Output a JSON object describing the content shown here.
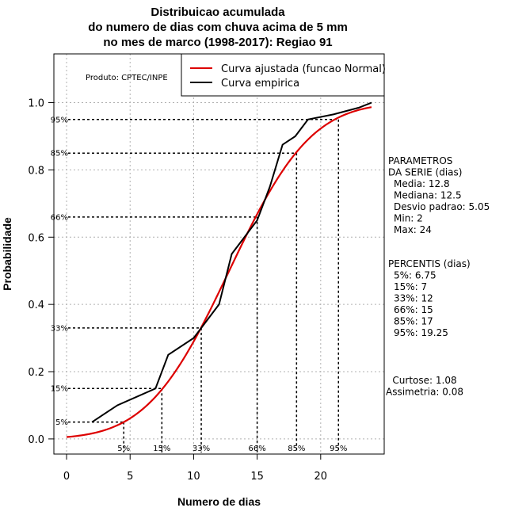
{
  "chart_data": {
    "type": "line",
    "title": [
      "Distribuicao acumulada",
      "do numero de dias com chuva acima de 5 mm",
      "no mes de marco (1998-2017): Regiao 91"
    ],
    "xlabel": "Numero de dias",
    "ylabel": "Probabilidade",
    "xlim": [
      -1,
      25
    ],
    "ylim": [
      -0.045,
      1.145
    ],
    "x_ticks": [
      0,
      5,
      10,
      15,
      20
    ],
    "y_ticks": [
      0.0,
      0.2,
      0.4,
      0.6,
      0.8,
      1.0
    ],
    "x_tick_labels": [
      "0",
      "5",
      "10",
      "15",
      "20"
    ],
    "y_tick_labels": [
      "0.0",
      "0.2",
      "0.4",
      "0.6",
      "0.8",
      "1.0"
    ],
    "product_label": "Produto: CPTEC/INPE",
    "legend": [
      {
        "label": "Curva ajustada (funcao Normal)",
        "color": "#dd0000"
      },
      {
        "label": "Curva empirica",
        "color": "#000000"
      }
    ],
    "series": [
      {
        "name": "Curva ajustada (funcao Normal)",
        "color": "#dd0000",
        "distribution": {
          "mean": 12.8,
          "sd": 5.05
        },
        "x_range": [
          0,
          24
        ]
      },
      {
        "name": "Curva empirica",
        "color": "#000000",
        "x": [
          2,
          4,
          7,
          8,
          10,
          12,
          13,
          14,
          15,
          16,
          17,
          18,
          19,
          21,
          23,
          24
        ],
        "y": [
          0.05,
          0.1,
          0.15,
          0.25,
          0.3,
          0.4,
          0.55,
          0.6,
          0.65,
          0.75,
          0.875,
          0.9,
          0.95,
          0.965,
          0.985,
          1.0
        ]
      }
    ],
    "percentile_lines": [
      {
        "label": "5%",
        "prob": 0.05,
        "x": 4.5
      },
      {
        "label": "15%",
        "prob": 0.15,
        "x": 7.5
      },
      {
        "label": "33%",
        "prob": 0.33,
        "x": 10.6
      },
      {
        "label": "66%",
        "prob": 0.66,
        "x": 15.0
      },
      {
        "label": "85%",
        "prob": 0.85,
        "x": 18.1
      },
      {
        "label": "95%",
        "prob": 0.95,
        "x": 21.4
      }
    ],
    "parametros": {
      "heading": [
        "PARAMETROS",
        "DA SERIE (dias)"
      ],
      "lines": [
        "Media: 12.8",
        "Mediana: 12.5",
        "Desvio padrao: 5.05",
        "Min: 2",
        "Max: 24"
      ]
    },
    "percentis": {
      "heading": "PERCENTIS (dias)",
      "lines": [
        "5%: 6.75",
        "15%: 7",
        "33%: 12",
        "66%: 15",
        "85%: 17",
        "95%: 19.25"
      ]
    },
    "shape": {
      "lines": [
        "Curtose: 1.08",
        "Assimetria: 0.08"
      ]
    }
  }
}
